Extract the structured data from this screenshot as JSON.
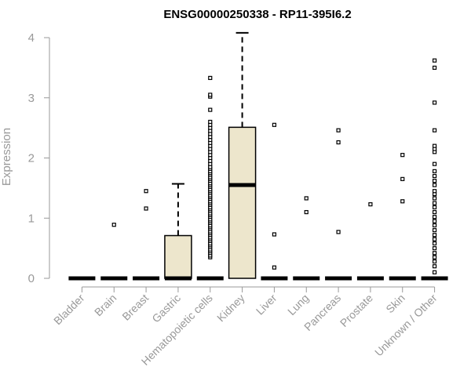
{
  "chart_data": {
    "type": "box",
    "title": "ENSG00000250338 - RP11-395I6.2",
    "xlabel": "",
    "ylabel": "Expression",
    "ylim": [
      0,
      4
    ],
    "yticks": [
      "0",
      "1",
      "2",
      "3",
      "4"
    ],
    "grid": false,
    "legend": "none",
    "box_fill": "#ede6cc",
    "categories": [
      "Bladder",
      "Brain",
      "Breast",
      "Gastric",
      "Hematopoietic cells",
      "Kidney",
      "Liver",
      "Lung",
      "Pancreas",
      "Prostate",
      "Skin",
      "Unknown / Other"
    ],
    "boxes": [
      {
        "category": "Bladder",
        "q1": 0,
        "median": 0,
        "q3": 0,
        "whisker_low": 0,
        "whisker_high": 0,
        "outliers": []
      },
      {
        "category": "Brain",
        "q1": 0,
        "median": 0,
        "q3": 0,
        "whisker_low": 0,
        "whisker_high": 0,
        "outliers": [
          0.89
        ]
      },
      {
        "category": "Breast",
        "q1": 0,
        "median": 0,
        "q3": 0,
        "whisker_low": 0,
        "whisker_high": 0,
        "outliers": [
          1.16,
          1.45
        ]
      },
      {
        "category": "Gastric",
        "q1": 0,
        "median": 0,
        "q3": 0.71,
        "whisker_low": 0,
        "whisker_high": 1.57,
        "outliers": []
      },
      {
        "category": "Hematopoietic cells",
        "q1": 0,
        "median": 0,
        "q3": 0,
        "whisker_low": 0,
        "whisker_high": 0,
        "outliers": [
          0.35,
          0.38,
          0.42,
          0.45,
          0.48,
          0.52,
          0.55,
          0.58,
          0.62,
          0.65,
          0.68,
          0.72,
          0.75,
          0.78,
          0.82,
          0.85,
          0.88,
          0.92,
          0.95,
          0.98,
          1.02,
          1.05,
          1.08,
          1.12,
          1.15,
          1.18,
          1.22,
          1.25,
          1.28,
          1.32,
          1.35,
          1.38,
          1.42,
          1.45,
          1.48,
          1.52,
          1.55,
          1.58,
          1.62,
          1.65,
          1.68,
          1.72,
          1.75,
          1.78,
          1.82,
          1.85,
          1.9,
          1.95,
          2.0,
          2.05,
          2.1,
          2.15,
          2.2,
          2.25,
          2.3,
          2.35,
          2.4,
          2.45,
          2.5,
          2.55,
          2.6,
          2.8,
          3.02,
          3.05,
          3.33
        ]
      },
      {
        "category": "Kidney",
        "q1": 0,
        "median": 1.55,
        "q3": 2.51,
        "whisker_low": 0,
        "whisker_high": 4.08,
        "outliers": []
      },
      {
        "category": "Liver",
        "q1": 0,
        "median": 0,
        "q3": 0,
        "whisker_low": 0,
        "whisker_high": 0,
        "outliers": [
          0.18,
          0.73,
          2.55
        ]
      },
      {
        "category": "Lung",
        "q1": 0,
        "median": 0,
        "q3": 0,
        "whisker_low": 0,
        "whisker_high": 0,
        "outliers": [
          1.1,
          1.33
        ]
      },
      {
        "category": "Pancreas",
        "q1": 0,
        "median": 0,
        "q3": 0,
        "whisker_low": 0,
        "whisker_high": 0,
        "outliers": [
          0.77,
          2.26,
          2.46
        ]
      },
      {
        "category": "Prostate",
        "q1": 0,
        "median": 0,
        "q3": 0,
        "whisker_low": 0,
        "whisker_high": 0,
        "outliers": [
          1.23
        ]
      },
      {
        "category": "Skin",
        "q1": 0,
        "median": 0,
        "q3": 0,
        "whisker_low": 0,
        "whisker_high": 0,
        "outliers": [
          1.28,
          1.65,
          2.05
        ]
      },
      {
        "category": "Unknown / Other",
        "q1": 0,
        "median": 0,
        "q3": 0,
        "whisker_low": 0,
        "whisker_high": 0,
        "outliers": [
          0.1,
          0.2,
          0.28,
          0.35,
          0.42,
          0.5,
          0.58,
          0.65,
          0.72,
          0.8,
          0.88,
          0.95,
          1.02,
          1.1,
          1.18,
          1.25,
          1.33,
          1.4,
          1.45,
          1.55,
          1.62,
          1.7,
          1.78,
          1.9,
          2.1,
          2.15,
          2.2,
          2.46,
          2.92,
          3.5,
          3.62
        ]
      }
    ]
  }
}
